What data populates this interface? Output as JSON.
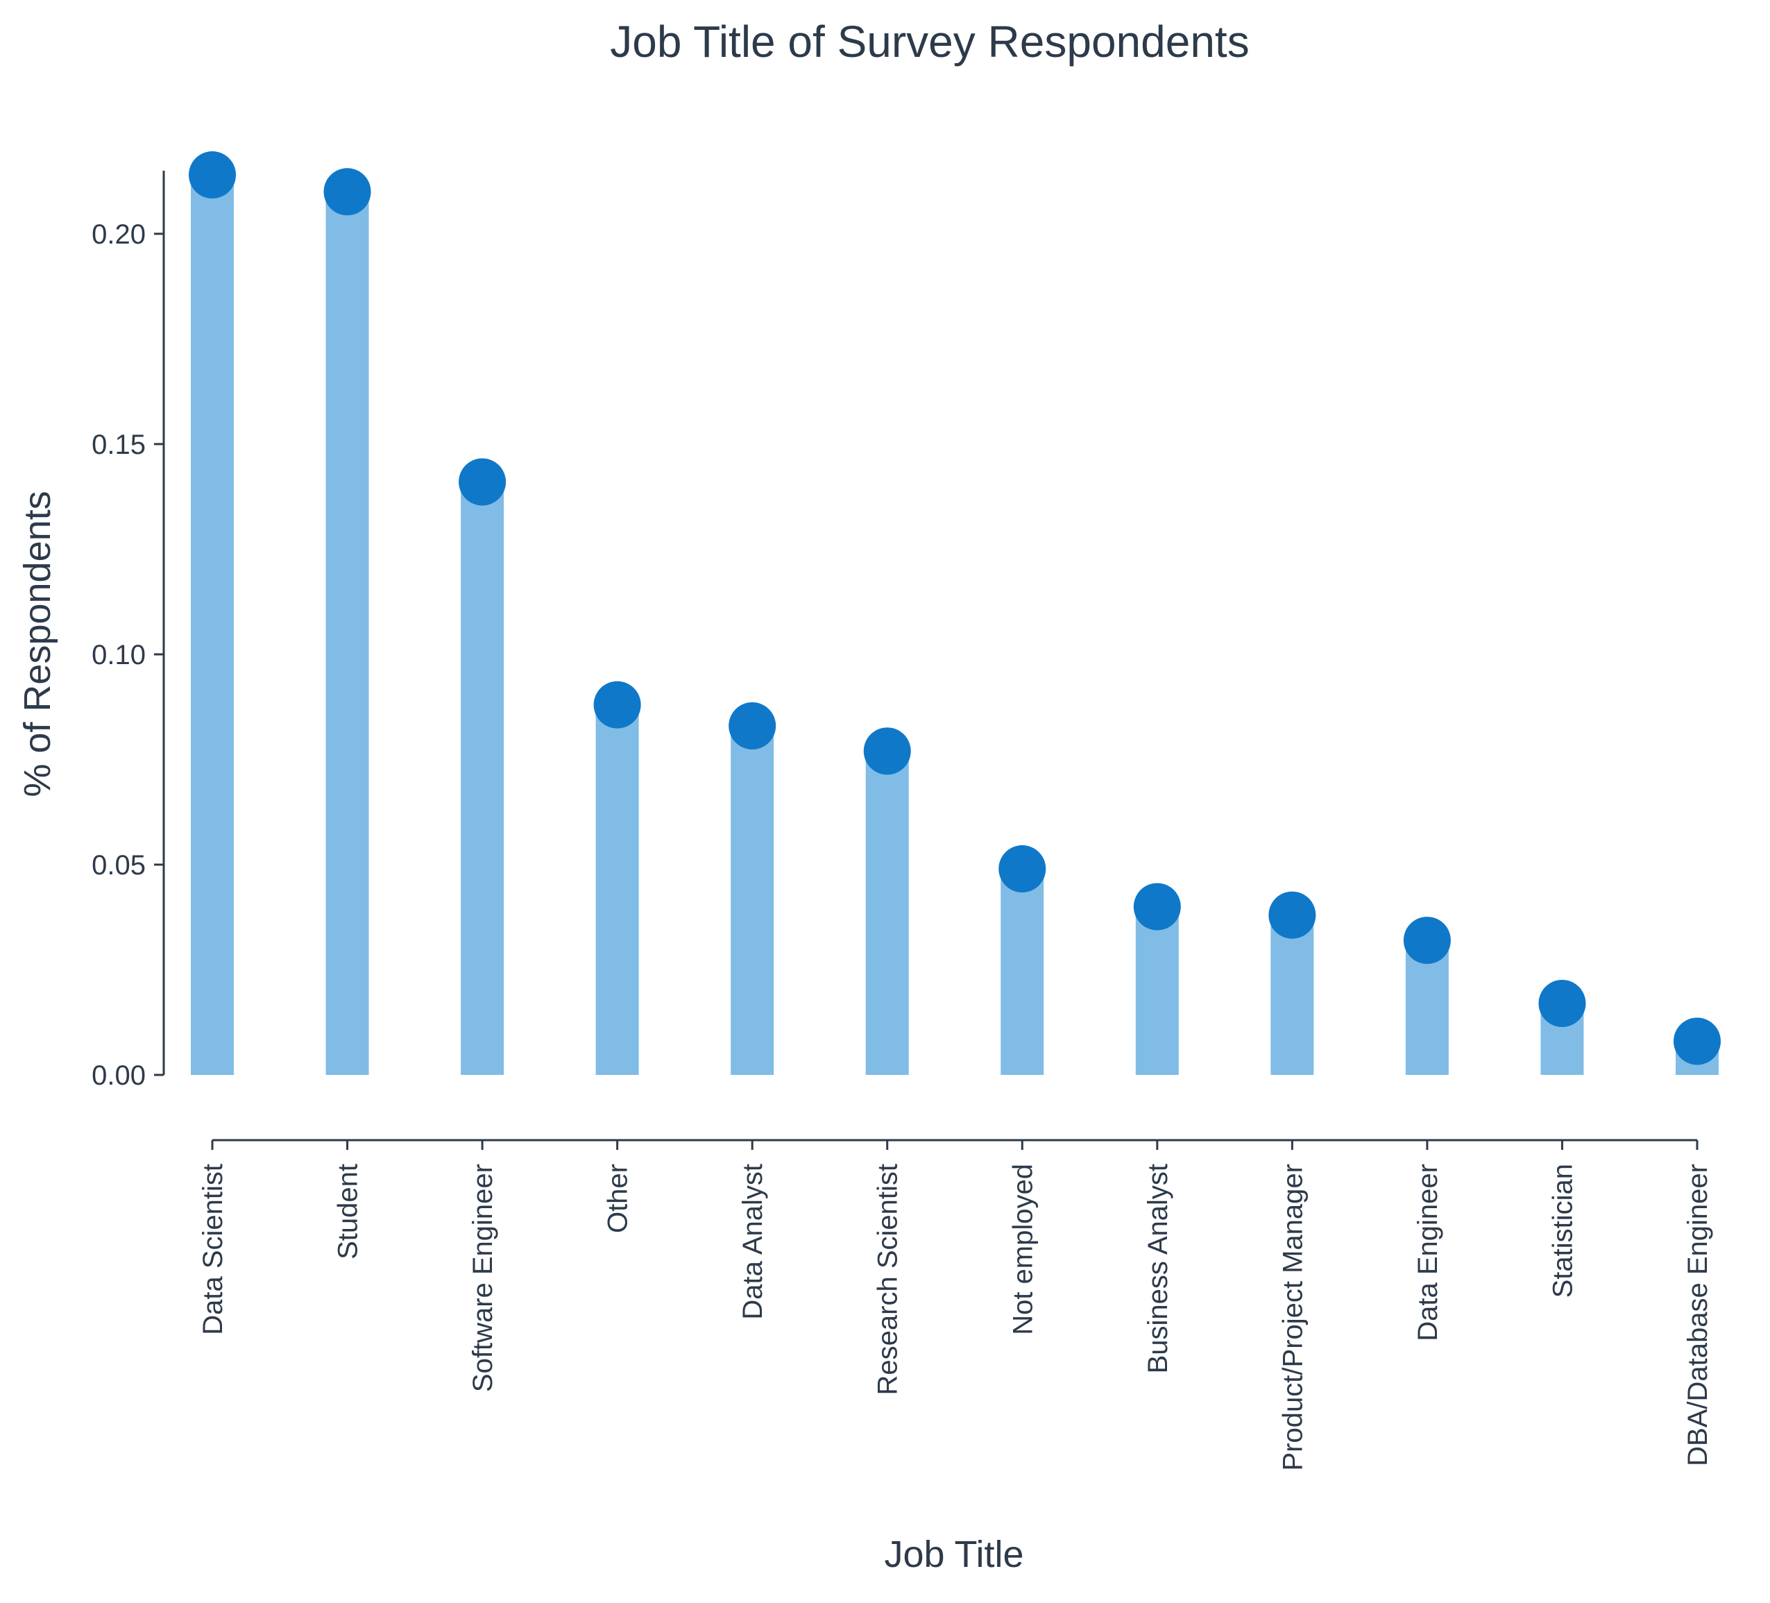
{
  "chart_data": {
    "type": "bar",
    "title": "Job Title of Survey Respondents",
    "xlabel": "Job Title",
    "ylabel": "% of Respondents",
    "ylim": [
      0,
      0.215
    ],
    "yticks": [
      "0.00",
      "0.05",
      "0.10",
      "0.15",
      "0.20"
    ],
    "ytick_values": [
      0,
      0.05,
      0.1,
      0.15,
      0.2
    ],
    "categories": [
      "Data Scientist",
      "Student",
      "Software Engineer",
      "Other",
      "Data Analyst",
      "Research Scientist",
      "Not employed",
      "Business Analyst",
      "Product/Project Manager",
      "Data Engineer",
      "Statistician",
      "DBA/Database Engineer"
    ],
    "values": [
      0.214,
      0.21,
      0.141,
      0.088,
      0.083,
      0.077,
      0.049,
      0.04,
      0.038,
      0.032,
      0.017,
      0.008
    ],
    "bar_color": "#80bce6",
    "marker_color": "#1078c8",
    "grid": false
  }
}
